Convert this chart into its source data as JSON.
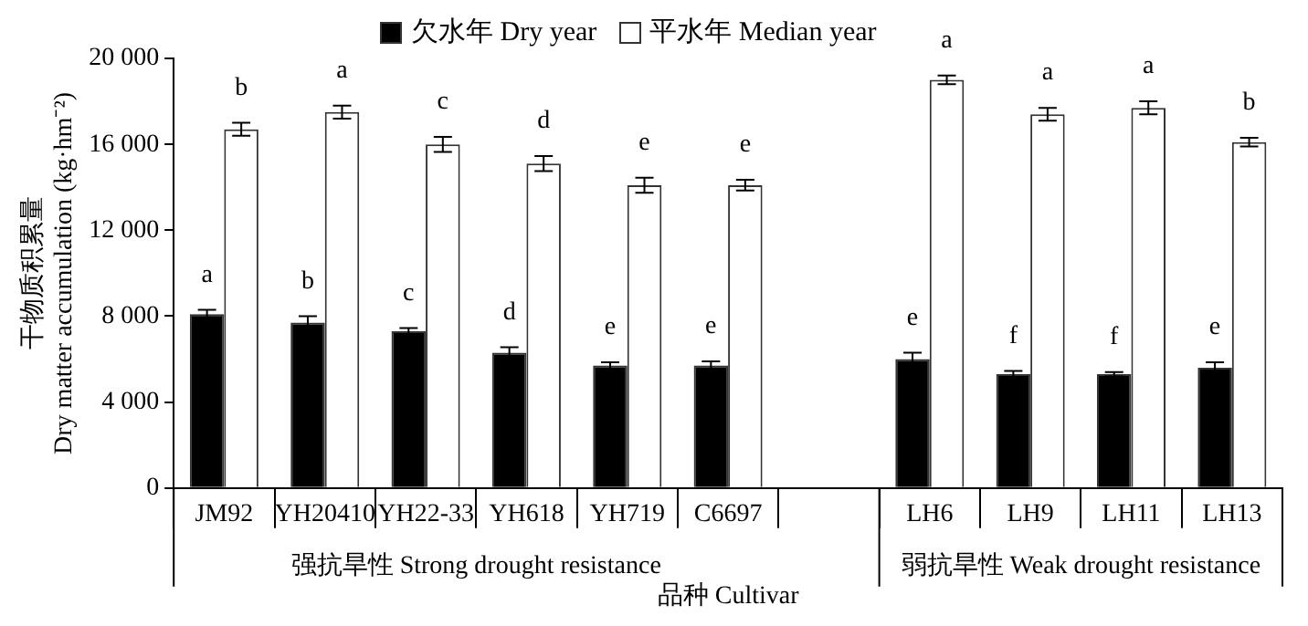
{
  "chart_data": {
    "type": "bar",
    "categories": [
      "JM92",
      "YH20410",
      "YH22-33",
      "YH618",
      "YH719",
      "C6697",
      null,
      "LH6",
      "LH9",
      "LH11",
      "LH13"
    ],
    "series": [
      {
        "name": "欠水年 Dry year",
        "color": "#000000",
        "values": [
          8100,
          7700,
          7300,
          6300,
          5700,
          5700,
          null,
          6000,
          5300,
          5300,
          5600
        ],
        "errors": [
          200,
          300,
          150,
          250,
          150,
          200,
          null,
          300,
          150,
          100,
          250
        ],
        "value_labels": [
          "a",
          "b",
          "c",
          "d",
          "e",
          "e",
          null,
          "e",
          "f",
          "f",
          "e"
        ]
      },
      {
        "name": "平水年 Median year",
        "color": "#ffffff",
        "values": [
          16700,
          17500,
          16000,
          15100,
          14100,
          14100,
          null,
          19000,
          17400,
          17700,
          16100
        ],
        "errors": [
          300,
          300,
          350,
          350,
          350,
          250,
          null,
          200,
          300,
          300,
          200
        ],
        "value_labels": [
          "b",
          "a",
          "c",
          "d",
          "e",
          "e",
          null,
          "a",
          "a",
          "a",
          "b"
        ]
      }
    ],
    "xlabel": "品种 Cultivar",
    "ylabel": "干物质积累量\nDry matter accumulation (kg·hm⁻²)",
    "annotations": [
      "强抗旱性 Strong drought resistance",
      "弱抗旱性 Weak drought resistance"
    ],
    "ylim": [
      0,
      20000
    ],
    "yticks": [
      0,
      {
        "value": 4000,
        "label": "4 000"
      },
      {
        "value": 8000,
        "label": "8 000"
      },
      {
        "value": 12000,
        "label": "12 000"
      },
      {
        "value": 16000,
        "label": "16 000"
      },
      {
        "value": 20000,
        "label": "20 000"
      }
    ],
    "legend": "top"
  }
}
